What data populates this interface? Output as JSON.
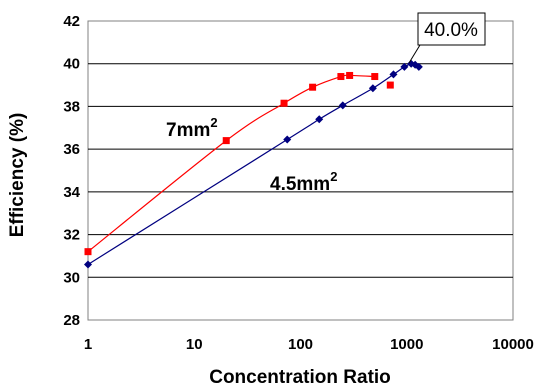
{
  "chart_data": {
    "type": "scatter",
    "xscale": "log",
    "xlabel": "Concentration Ratio",
    "ylabel": "Efficiency (%)",
    "xlim": [
      1,
      10000
    ],
    "ylim": [
      28,
      42
    ],
    "xticks": [
      "1",
      "10",
      "100",
      "1000",
      "10000"
    ],
    "yticks": [
      "28",
      "30",
      "32",
      "34",
      "36",
      "38",
      "40",
      "42"
    ],
    "grid": "horizontal",
    "series": [
      {
        "label_main": "7mm",
        "label_sup": "2",
        "color": "#ff0000",
        "marker": "square",
        "points": [
          [
            1,
            31.2
          ],
          [
            20,
            36.4
          ],
          [
            70,
            38.15
          ],
          [
            130,
            38.9
          ],
          [
            240,
            39.4
          ],
          [
            290,
            39.45
          ],
          [
            500,
            39.4
          ],
          [
            700,
            39.0
          ]
        ]
      },
      {
        "label_main": "4.5mm",
        "label_sup": "2",
        "color": "#000080",
        "marker": "diamond",
        "points": [
          [
            1,
            30.6
          ],
          [
            75,
            36.45
          ],
          [
            150,
            37.4
          ],
          [
            250,
            38.05
          ],
          [
            480,
            38.85
          ],
          [
            750,
            39.5
          ],
          [
            950,
            39.85
          ],
          [
            1100,
            40.0
          ],
          [
            1200,
            39.95
          ],
          [
            1300,
            39.85
          ]
        ]
      }
    ],
    "annotation": "40.0%"
  }
}
